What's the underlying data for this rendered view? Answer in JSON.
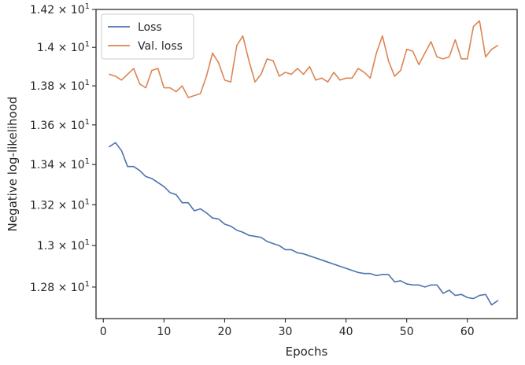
{
  "chart_data": {
    "type": "line",
    "xlabel": "Epochs",
    "ylabel": "Negative log-likelihood",
    "xlim": [
      -1.2,
      68.2
    ],
    "ylim": [
      12.65,
      14.2
    ],
    "y_scale": "log",
    "grid": false,
    "legend_position": "top-left",
    "x_ticks": [
      0,
      10,
      20,
      30,
      40,
      50,
      60
    ],
    "x_tick_labels": [
      "0",
      "10",
      "20",
      "30",
      "40",
      "50",
      "60"
    ],
    "y_ticks": [
      12.8,
      13.0,
      13.2,
      13.4,
      13.6,
      13.8,
      14.0,
      14.2
    ],
    "y_tick_labels": [
      {
        "mant": "1.28",
        "exp": "1"
      },
      {
        "mant": "1.3",
        "exp": "1"
      },
      {
        "mant": "1.32",
        "exp": "1"
      },
      {
        "mant": "1.34",
        "exp": "1"
      },
      {
        "mant": "1.36",
        "exp": "1"
      },
      {
        "mant": "1.38",
        "exp": "1"
      },
      {
        "mant": "1.4",
        "exp": "1"
      },
      {
        "mant": "1.42",
        "exp": "1"
      }
    ],
    "x": [
      1,
      2,
      3,
      4,
      5,
      6,
      7,
      8,
      9,
      10,
      11,
      12,
      13,
      14,
      15,
      16,
      17,
      18,
      19,
      20,
      21,
      22,
      23,
      24,
      25,
      26,
      27,
      28,
      29,
      30,
      31,
      32,
      33,
      34,
      35,
      36,
      37,
      38,
      39,
      40,
      41,
      42,
      43,
      44,
      45,
      46,
      47,
      48,
      49,
      50,
      51,
      52,
      53,
      54,
      55,
      56,
      57,
      58,
      59,
      60,
      61,
      62,
      63,
      64,
      65
    ],
    "series": [
      {
        "name": "Loss",
        "color": "#4c72b0",
        "values": [
          13.49,
          13.51,
          13.47,
          13.39,
          13.39,
          13.37,
          13.34,
          13.33,
          13.31,
          13.29,
          13.26,
          13.25,
          13.21,
          13.21,
          13.17,
          13.18,
          13.16,
          13.135,
          13.13,
          13.105,
          13.095,
          13.075,
          13.065,
          13.05,
          13.045,
          13.04,
          13.02,
          13.01,
          13.0,
          12.98,
          12.98,
          12.965,
          12.96,
          12.95,
          12.94,
          12.93,
          12.92,
          12.91,
          12.9,
          12.89,
          12.88,
          12.87,
          12.865,
          12.865,
          12.855,
          12.86,
          12.86,
          12.825,
          12.83,
          12.815,
          12.81,
          12.81,
          12.8,
          12.81,
          12.81,
          12.77,
          12.785,
          12.76,
          12.765,
          12.75,
          12.745,
          12.76,
          12.765,
          12.715,
          12.735
        ]
      },
      {
        "name": "Val. loss",
        "color": "#dd8452",
        "values": [
          13.86,
          13.85,
          13.83,
          13.86,
          13.89,
          13.81,
          13.79,
          13.88,
          13.89,
          13.79,
          13.79,
          13.77,
          13.8,
          13.74,
          13.75,
          13.76,
          13.85,
          13.97,
          13.92,
          13.83,
          13.82,
          14.01,
          14.06,
          13.93,
          13.82,
          13.86,
          13.94,
          13.93,
          13.85,
          13.87,
          13.86,
          13.89,
          13.86,
          13.9,
          13.83,
          13.84,
          13.82,
          13.87,
          13.83,
          13.84,
          13.84,
          13.89,
          13.87,
          13.84,
          13.97,
          14.06,
          13.93,
          13.85,
          13.88,
          13.99,
          13.98,
          13.91,
          13.97,
          14.03,
          13.95,
          13.94,
          13.95,
          14.04,
          13.94,
          13.94,
          14.11,
          14.14,
          13.95,
          13.99,
          14.01
        ]
      }
    ]
  }
}
